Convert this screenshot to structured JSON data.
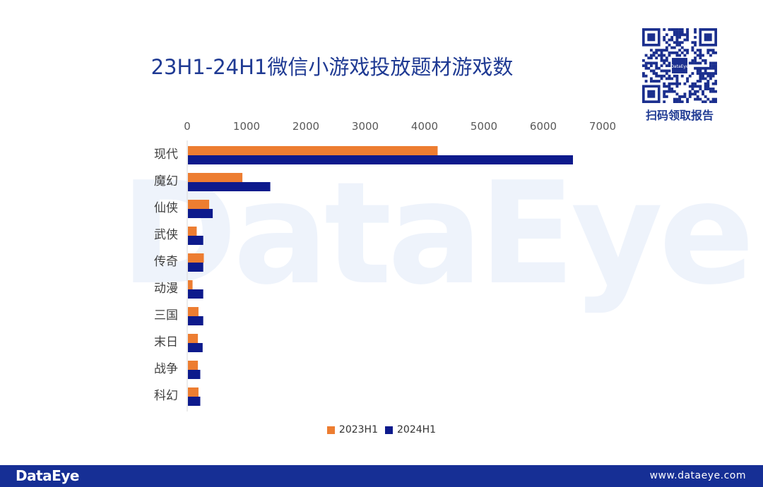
{
  "watermark": "DataEye",
  "title": "23H1-24H1微信小游戏投放题材游戏数",
  "qr": {
    "center_label": "DataEye",
    "caption": "扫码领取报告"
  },
  "footer": {
    "brand": "DataEye",
    "url": "www.dataeye.com"
  },
  "colors": {
    "series_2023": "#ed7d31",
    "series_2024": "#0d1a8c",
    "title": "#1f3a93",
    "footer": "#162f95"
  },
  "chart_data": {
    "type": "bar",
    "orientation": "horizontal",
    "title": "23H1-24H1微信小游戏投放题材游戏数",
    "categories": [
      "现代",
      "魔幻",
      "仙侠",
      "武侠",
      "传奇",
      "动漫",
      "三国",
      "末日",
      "战争",
      "科幻"
    ],
    "series": [
      {
        "name": "2023H1",
        "color": "#ed7d31",
        "values": [
          4220,
          930,
          370,
          160,
          280,
          90,
          190,
          180,
          180,
          190
        ]
      },
      {
        "name": "2024H1",
        "color": "#0d1a8c",
        "values": [
          6500,
          1400,
          430,
          270,
          270,
          270,
          270,
          260,
          220,
          220
        ]
      }
    ],
    "xlim": [
      0,
      7000
    ],
    "xticks": [
      0,
      1000,
      2000,
      3000,
      4000,
      5000,
      6000,
      7000
    ],
    "xaxis_position": "top",
    "grid": false,
    "legend_position": "bottom"
  }
}
